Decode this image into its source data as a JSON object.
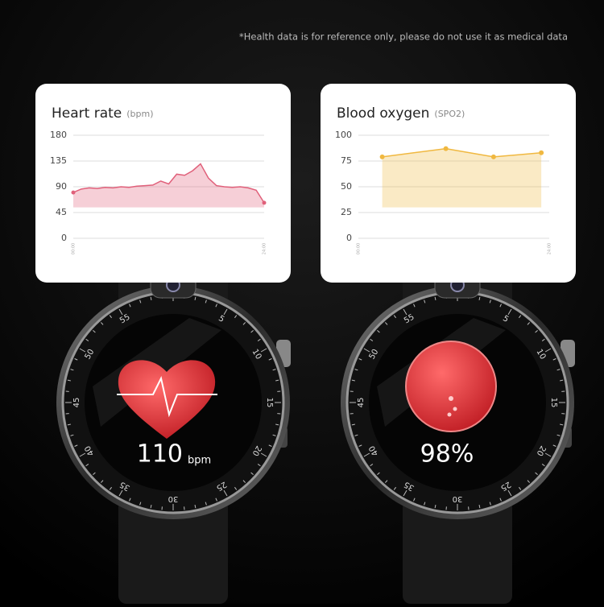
{
  "disclaimer": "*Health data is for reference only, please do not use it as medical data",
  "chart_data": [
    {
      "type": "area",
      "title": "Heart rate",
      "subtitle": "(bpm)",
      "color": "#e0607a",
      "markers": false,
      "x": [
        0,
        1,
        2,
        3,
        4,
        5,
        6,
        7,
        8,
        9,
        10,
        11,
        12,
        13,
        14,
        15,
        16,
        17,
        18,
        19,
        20,
        21,
        22,
        23,
        24
      ],
      "values": [
        80,
        86,
        88,
        87,
        89,
        88,
        90,
        89,
        91,
        92,
        93,
        100,
        95,
        112,
        110,
        118,
        130,
        105,
        92,
        90,
        89,
        90,
        88,
        84,
        62
      ],
      "xlim": [
        0,
        24
      ],
      "xticks": [
        {
          "value": 0,
          "label": "00:00"
        },
        {
          "value": 24,
          "label": "24:00"
        }
      ],
      "ylim": [
        0,
        180
      ],
      "yticks": [
        0,
        45,
        90,
        135,
        180
      ],
      "grid": true
    },
    {
      "type": "area",
      "title": "Blood oxygen",
      "subtitle": "(SPO2)",
      "color": "#f0b840",
      "markers": true,
      "x": [
        3,
        11,
        17,
        23
      ],
      "values": [
        79,
        87,
        79,
        83
      ],
      "xlim": [
        0,
        24
      ],
      "xticks": [
        {
          "value": 0,
          "label": "00:00"
        },
        {
          "value": 24,
          "label": "24:00"
        }
      ],
      "ylim": [
        0,
        100
      ],
      "yticks": [
        0,
        25,
        50,
        75,
        100
      ],
      "grid": true
    }
  ],
  "watches": [
    {
      "reading": "110",
      "unit": "bpm"
    },
    {
      "reading": "98%"
    }
  ],
  "bezel_numbers": [
    "5",
    "10",
    "15",
    "20",
    "25",
    "30",
    "35",
    "40",
    "45",
    "50",
    "55"
  ]
}
